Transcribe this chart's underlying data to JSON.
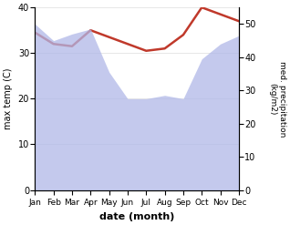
{
  "months": [
    "Jan",
    "Feb",
    "Mar",
    "Apr",
    "May",
    "Jun",
    "Jul",
    "Aug",
    "Sep",
    "Oct",
    "Nov",
    "Dec"
  ],
  "month_indices": [
    0,
    1,
    2,
    3,
    4,
    5,
    6,
    7,
    8,
    9,
    10,
    11
  ],
  "temp_max": [
    34.5,
    32.0,
    31.5,
    35.0,
    33.5,
    32.0,
    30.5,
    31.0,
    34.0,
    40.0,
    38.5,
    37.0
  ],
  "precipitation": [
    50.0,
    45.0,
    47.0,
    48.5,
    35.5,
    27.5,
    27.5,
    28.5,
    27.5,
    39.5,
    44.0,
    46.5
  ],
  "temp_ylim": [
    0,
    40
  ],
  "precip_ylim": [
    0,
    55
  ],
  "temp_color": "#c0392b",
  "precip_fill_color": "#b0b8e8",
  "xlabel": "date (month)",
  "ylabel_left": "max temp (C)",
  "ylabel_right": "med. precipitation\n(kg/m2)",
  "temp_yticks": [
    0,
    10,
    20,
    30,
    40
  ],
  "precip_yticks": [
    0,
    10,
    20,
    30,
    40,
    50
  ],
  "bg_color": "#ffffff"
}
